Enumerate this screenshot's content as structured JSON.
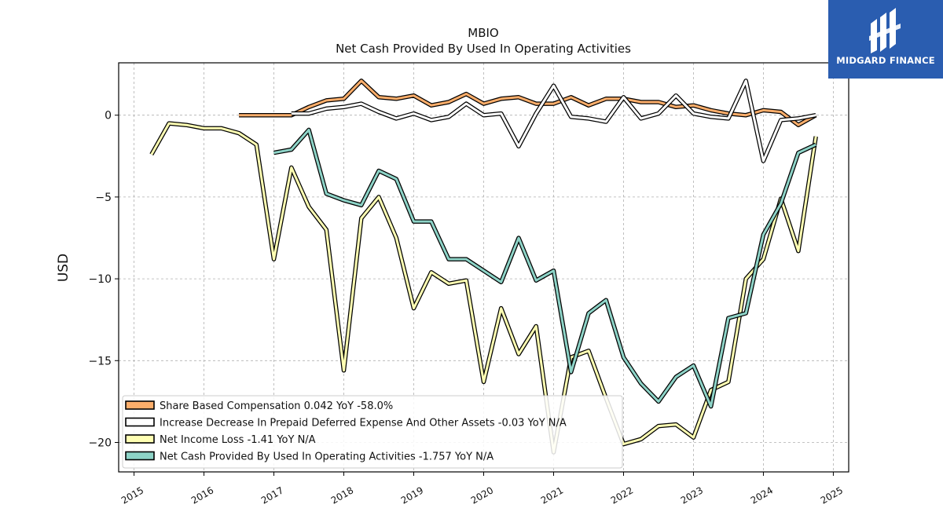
{
  "brand": {
    "name": "MIDGARD FINANCE",
    "icon": "midgard-logo-icon",
    "color": "#2a5db0"
  },
  "chart_data": {
    "type": "line",
    "title": "MBIO",
    "subtitle": "Net Cash Provided By Used In Operating Activities",
    "xlabel": "",
    "ylabel": "USD",
    "xlim": [
      2014.78,
      2025.22
    ],
    "ylim": [
      -21.8,
      3.2
    ],
    "x_ticks": [
      "2015",
      "2016",
      "2017",
      "2018",
      "2019",
      "2020",
      "2021",
      "2022",
      "2023",
      "2024",
      "2025"
    ],
    "y_ticks": [
      0,
      -5,
      -10,
      -15,
      -20
    ],
    "y_tick_labels": [
      "0",
      "−5",
      "−10",
      "−15",
      "−20"
    ],
    "grid": true,
    "legend_position": "lower-left",
    "series": [
      {
        "name": "Share Based Compensation",
        "legend": "Share Based Compensation  0.042 YoY -58.0%",
        "color": "#fdae6b",
        "x": [
          2016.5,
          2016.75,
          2017.0,
          2017.25,
          2017.5,
          2017.75,
          2018.0,
          2018.25,
          2018.5,
          2018.75,
          2019.0,
          2019.25,
          2019.5,
          2019.75,
          2020.0,
          2020.25,
          2020.5,
          2020.75,
          2021.0,
          2021.25,
          2021.5,
          2021.75,
          2022.0,
          2022.25,
          2022.5,
          2022.75,
          2023.0,
          2023.25,
          2023.5,
          2023.75,
          2024.0,
          2024.25,
          2024.5,
          2024.75
        ],
        "y": [
          0.0,
          0.0,
          0.0,
          0.0,
          0.5,
          0.9,
          1.0,
          2.1,
          1.1,
          1.0,
          1.2,
          0.6,
          0.8,
          1.3,
          0.7,
          1.0,
          1.1,
          0.7,
          0.7,
          1.1,
          0.6,
          1.0,
          1.0,
          0.8,
          0.8,
          0.5,
          0.6,
          0.3,
          0.1,
          0.0,
          0.3,
          0.2,
          -0.6,
          0.0
        ]
      },
      {
        "name": "Increase Decrease In Prepaid Deferred Expense And Other Assets",
        "legend": "Increase Decrease In Prepaid Deferred Expense And Other Assets  -0.03 YoY N/A",
        "color": "#ffffff",
        "x": [
          2017.25,
          2017.5,
          2017.75,
          2018.0,
          2018.25,
          2018.5,
          2018.75,
          2019.0,
          2019.25,
          2019.5,
          2019.75,
          2020.0,
          2020.25,
          2020.5,
          2020.75,
          2021.0,
          2021.25,
          2021.5,
          2021.75,
          2022.0,
          2022.25,
          2022.5,
          2022.75,
          2023.0,
          2023.25,
          2023.5,
          2023.75,
          2024.0,
          2024.25,
          2024.5,
          2024.75
        ],
        "y": [
          0.1,
          0.1,
          0.4,
          0.5,
          0.7,
          0.2,
          -0.2,
          0.1,
          -0.3,
          -0.1,
          0.7,
          0.0,
          0.1,
          -1.9,
          0.1,
          1.8,
          -0.1,
          -0.2,
          -0.4,
          1.1,
          -0.2,
          0.1,
          1.2,
          0.1,
          -0.1,
          -0.2,
          2.1,
          -2.8,
          -0.3,
          -0.2,
          0.0
        ]
      },
      {
        "name": "Net Income Loss",
        "legend": "Net Income Loss  -1.41 YoY N/A",
        "color": "#ffffb3",
        "x": [
          2015.25,
          2015.5,
          2015.75,
          2016.0,
          2016.25,
          2016.5,
          2016.75,
          2017.0,
          2017.25,
          2017.5,
          2017.75,
          2018.0,
          2018.25,
          2018.5,
          2018.75,
          2019.0,
          2019.25,
          2019.5,
          2019.75,
          2020.0,
          2020.25,
          2020.5,
          2020.75,
          2021.0,
          2021.25,
          2021.5,
          2021.75,
          2022.0,
          2022.25,
          2022.5,
          2022.75,
          2023.0,
          2023.25,
          2023.5,
          2023.75,
          2024.0,
          2024.25,
          2024.5,
          2024.75
        ],
        "y": [
          -2.4,
          -0.5,
          -0.6,
          -0.8,
          -0.8,
          -1.1,
          -1.8,
          -8.8,
          -3.2,
          -5.6,
          -7.0,
          -15.6,
          -6.3,
          -5.0,
          -7.5,
          -11.8,
          -9.6,
          -10.3,
          -10.1,
          -16.3,
          -11.8,
          -14.6,
          -12.9,
          -20.6,
          -14.8,
          -14.4,
          -17.3,
          -20.1,
          -19.8,
          -19.0,
          -18.9,
          -19.7,
          -16.8,
          -16.3,
          -10.0,
          -8.8,
          -5.1,
          -8.3,
          -1.3
        ]
      },
      {
        "name": "Net Cash Provided By Used In Operating Activities",
        "legend": "Net Cash Provided By Used In Operating Activities  -1.757 YoY N/A",
        "color": "#8dd3c7",
        "x": [
          2017.0,
          2017.25,
          2017.5,
          2017.75,
          2018.0,
          2018.25,
          2018.5,
          2018.75,
          2019.0,
          2019.25,
          2019.5,
          2019.75,
          2020.0,
          2020.25,
          2020.5,
          2020.75,
          2021.0,
          2021.25,
          2021.5,
          2021.75,
          2022.0,
          2022.25,
          2022.5,
          2022.75,
          2023.0,
          2023.25,
          2023.5,
          2023.75,
          2024.0,
          2024.25,
          2024.5,
          2024.75
        ],
        "y": [
          -2.3,
          -2.1,
          -0.9,
          -4.8,
          -5.2,
          -5.5,
          -3.4,
          -3.9,
          -6.5,
          -6.5,
          -8.8,
          -8.8,
          -9.5,
          -10.2,
          -7.5,
          -10.1,
          -9.5,
          -15.7,
          -12.1,
          -11.3,
          -14.8,
          -16.4,
          -17.5,
          -16.0,
          -15.3,
          -17.8,
          -12.4,
          -12.1,
          -7.3,
          -5.4,
          -2.3,
          -1.8
        ]
      }
    ]
  }
}
